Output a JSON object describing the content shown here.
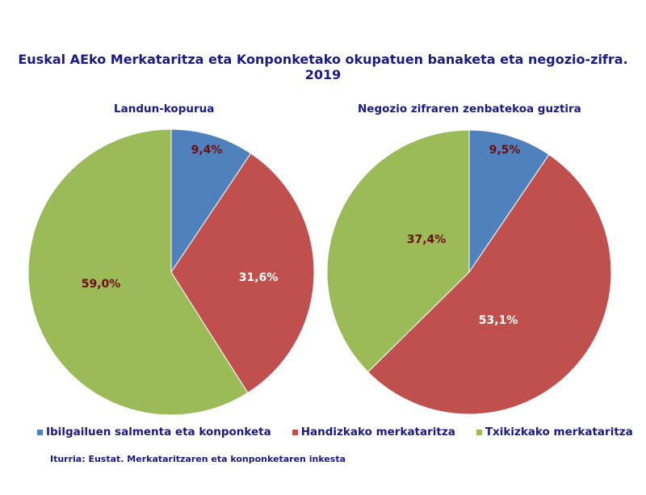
{
  "chart_data": [
    {
      "type": "pie",
      "title": "Landun-kopurua",
      "categories": [
        "Ibilgailuen salmenta eta konponketa",
        "Handizkako merkataritza",
        "Txikizkako merkataritza"
      ],
      "values": [
        9.4,
        31.6,
        59.0
      ],
      "labels": [
        "9,4%",
        "31,6%",
        "59,0%"
      ]
    },
    {
      "type": "pie",
      "title": "Negozio zifraren zenbatekoa guztira",
      "categories": [
        "Ibilgailuen salmenta eta konponketa",
        "Handizkako merkataritza",
        "Txikizkako merkataritza"
      ],
      "values": [
        9.5,
        53.1,
        37.4
      ],
      "labels": [
        "9,5%",
        "53,1%",
        "37,4%"
      ]
    }
  ],
  "title": "Euskal AEko Merkataritza eta Konponketako okupatuen banaketa eta negozio-zifra. 2019",
  "legend": [
    "Ibilgailuen salmenta eta konponketa",
    "Handizkako merkataritza",
    "Txikizkako merkataritza"
  ],
  "colors": [
    "#4F81BD",
    "#C0504D",
    "#9BBB59"
  ],
  "source": "Iturria: Eustat. Merkataritzaren eta konponketaren inkesta"
}
